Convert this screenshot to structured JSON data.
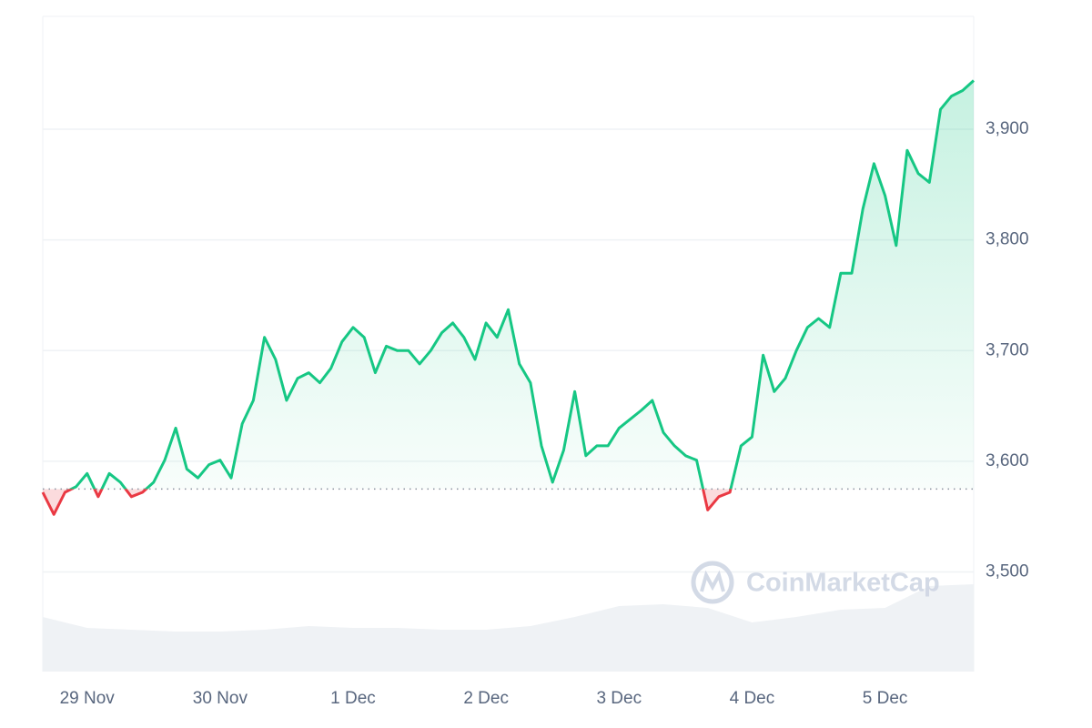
{
  "chart_data": {
    "type": "line",
    "x": [
      -8,
      -6,
      -4,
      -2,
      0,
      2,
      4,
      6,
      8,
      10,
      12,
      14,
      16,
      18,
      20,
      22,
      24,
      26,
      28,
      30,
      32,
      34,
      36,
      38,
      40,
      42,
      44,
      46,
      48,
      50,
      52,
      54,
      56,
      58,
      60,
      62,
      64,
      66,
      68,
      70,
      72,
      74,
      76,
      78,
      80,
      82,
      84,
      86,
      88,
      90,
      92,
      94,
      96,
      98,
      100,
      102,
      104,
      106,
      108,
      110,
      112,
      114,
      116,
      118,
      120,
      122,
      124,
      126,
      128,
      130,
      132,
      134,
      136,
      138,
      140,
      142,
      144,
      146,
      148,
      150,
      152,
      154,
      156,
      158,
      160
    ],
    "values": [
      3572,
      3552,
      3572,
      3577,
      3589,
      3568,
      3589,
      3581,
      3568,
      3572,
      3581,
      3601,
      3630,
      3593,
      3585,
      3597,
      3601,
      3585,
      3634,
      3655,
      3712,
      3692,
      3655,
      3675,
      3680,
      3671,
      3684,
      3708,
      3721,
      3712,
      3680,
      3704,
      3700,
      3700,
      3688,
      3700,
      3716,
      3725,
      3712,
      3692,
      3725,
      3712,
      3737,
      3688,
      3671,
      3614,
      3581,
      3610,
      3663,
      3605,
      3614,
      3614,
      3630,
      3638,
      3646,
      3655,
      3626,
      3614,
      3605,
      3601,
      3556,
      3568,
      3572,
      3614,
      3622,
      3696,
      3663,
      3675,
      3700,
      3721,
      3729,
      3721,
      3770,
      3770,
      3828,
      3869,
      3840,
      3795,
      3881,
      3860,
      3852,
      3918,
      3930,
      3935,
      3944
    ],
    "color": "#16c784",
    "down_color": "#ea3943",
    "baseline": 3575,
    "xlim": [
      -8,
      160
    ],
    "xticks": [
      {
        "value": 0,
        "label": "29 Nov"
      },
      {
        "value": 24,
        "label": "30 Nov"
      },
      {
        "value": 48,
        "label": "1 Dec"
      },
      {
        "value": 72,
        "label": "2 Dec"
      },
      {
        "value": 96,
        "label": "3 Dec"
      },
      {
        "value": 120,
        "label": "4 Dec"
      },
      {
        "value": 144,
        "label": "5 Dec"
      }
    ],
    "ylim": [
      3410,
      4002
    ],
    "yticks": [
      {
        "value": 3500,
        "label": "3,500"
      },
      {
        "value": 3600,
        "label": "3,600"
      },
      {
        "value": 3700,
        "label": "3,700"
      },
      {
        "value": 3800,
        "label": "3,800"
      },
      {
        "value": 3900,
        "label": "3,900"
      }
    ],
    "grid": true,
    "volume": {
      "x": [
        -8,
        0,
        8,
        16,
        24,
        32,
        40,
        48,
        56,
        64,
        72,
        80,
        88,
        96,
        104,
        112,
        120,
        128,
        136,
        144,
        152,
        160
      ],
      "values": [
        30,
        24,
        23,
        22,
        22,
        23,
        25,
        24,
        24,
        23,
        23,
        25,
        30,
        36,
        37,
        35,
        27,
        30,
        34,
        35,
        47,
        48
      ],
      "color": "#eff2f5",
      "axis": "y2"
    },
    "y2lim": [
      0,
      100
    ],
    "watermark": "CoinMarketCap"
  }
}
